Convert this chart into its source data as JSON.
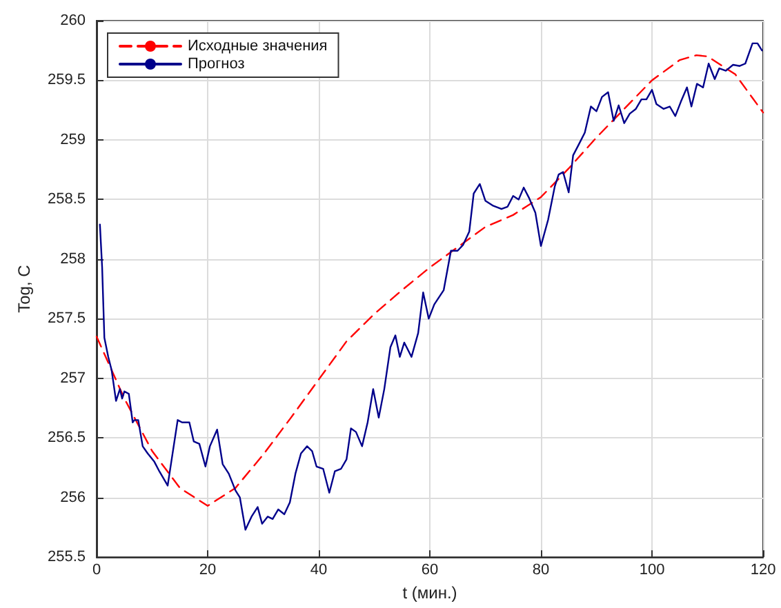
{
  "chart_data": {
    "type": "line",
    "xlabel": "t (мин.)",
    "ylabel": "Tog, C",
    "xlim": [
      0,
      120
    ],
    "xticks": [
      0,
      20,
      40,
      60,
      80,
      100,
      120
    ],
    "ylim": [
      255.5,
      260
    ],
    "yticks": [
      255.5,
      256,
      256.5,
      257,
      257.5,
      258,
      258.5,
      259,
      259.5,
      260
    ],
    "grid": true,
    "legend": "top left",
    "marker": "none",
    "series": [
      {
        "name": "Исходные значения",
        "color": "#ff0000",
        "line_style": "dashed",
        "x": [
          0,
          5,
          10,
          15,
          20,
          25,
          30,
          35,
          40,
          45,
          50,
          55,
          60,
          65,
          70,
          75,
          80,
          85,
          90,
          95,
          100,
          105,
          108,
          110,
          115,
          120
        ],
        "values": [
          257.35,
          256.83,
          256.39,
          256.08,
          255.93,
          256.08,
          256.36,
          256.67,
          256.99,
          257.31,
          257.54,
          257.74,
          257.93,
          258.1,
          258.27,
          258.37,
          258.52,
          258.76,
          259.02,
          259.26,
          259.5,
          259.67,
          259.71,
          259.7,
          259.55,
          259.23
        ]
      },
      {
        "name": "Прогноз",
        "color": "#00008b",
        "line_style": "solid",
        "x": [
          0.6,
          1,
          1.4,
          2.1,
          2.7,
          3.5,
          4.2,
          4.6,
          5,
          5.8,
          6.5,
          6.8,
          7.5,
          8.3,
          9.2,
          10.4,
          11.3,
          12.8,
          14.6,
          15.4,
          16.7,
          17.5,
          18.5,
          19.6,
          20.4,
          21.7,
          22.7,
          23.8,
          25,
          25.8,
          26.8,
          27.9,
          29,
          29.8,
          30.8,
          31.7,
          32.7,
          33.8,
          34.8,
          35.8,
          36.8,
          37.9,
          38.8,
          39.6,
          40.8,
          41.9,
          42.9,
          44,
          45,
          45.8,
          46.7,
          47.8,
          48.8,
          49.8,
          50.8,
          51.8,
          52.9,
          53.8,
          54.6,
          55.4,
          56.7,
          57.9,
          58.8,
          59.8,
          60.8,
          62.5,
          63.8,
          65,
          66,
          67.1,
          67.9,
          69,
          70,
          71.3,
          72.9,
          74,
          75,
          76,
          76.9,
          77.9,
          79,
          80,
          81.3,
          82.5,
          83.2,
          84,
          85,
          85.8,
          86.8,
          87.9,
          89,
          90,
          91,
          92.1,
          93.1,
          94,
          95,
          96,
          97.1,
          98.1,
          99,
          100,
          100.8,
          102.1,
          103.2,
          104.2,
          105.2,
          106.3,
          107.1,
          108.1,
          109.2,
          110.2,
          111.3,
          112.1,
          113.3,
          114.6,
          115.8,
          116.8,
          118.1,
          119,
          119.8
        ],
        "values": [
          258.29,
          257.93,
          257.34,
          257.18,
          257.07,
          256.81,
          256.91,
          256.83,
          256.89,
          256.87,
          256.63,
          256.65,
          256.65,
          256.43,
          256.37,
          256.3,
          256.22,
          256.1,
          256.65,
          256.63,
          256.63,
          256.47,
          256.45,
          256.26,
          256.43,
          256.57,
          256.28,
          256.2,
          256.06,
          256,
          255.73,
          255.84,
          255.92,
          255.78,
          255.84,
          255.82,
          255.9,
          255.86,
          255.96,
          256.2,
          256.37,
          256.43,
          256.39,
          256.26,
          256.24,
          256.04,
          256.22,
          256.24,
          256.32,
          256.58,
          256.55,
          256.43,
          256.63,
          256.91,
          256.67,
          256.91,
          257.26,
          257.36,
          257.18,
          257.3,
          257.18,
          257.38,
          257.72,
          257.5,
          257.62,
          257.74,
          258.07,
          258.07,
          258.12,
          258.23,
          258.55,
          258.63,
          258.49,
          258.45,
          258.42,
          258.44,
          258.53,
          258.5,
          258.6,
          258.51,
          258.39,
          258.11,
          258.33,
          258.61,
          258.71,
          258.73,
          258.56,
          258.87,
          258.96,
          259.06,
          259.28,
          259.24,
          259.36,
          259.4,
          259.16,
          259.29,
          259.14,
          259.22,
          259.26,
          259.34,
          259.34,
          259.42,
          259.3,
          259.26,
          259.28,
          259.2,
          259.32,
          259.44,
          259.28,
          259.47,
          259.44,
          259.64,
          259.51,
          259.6,
          259.58,
          259.63,
          259.62,
          259.64,
          259.81,
          259.81,
          259.75
        ]
      }
    ]
  }
}
